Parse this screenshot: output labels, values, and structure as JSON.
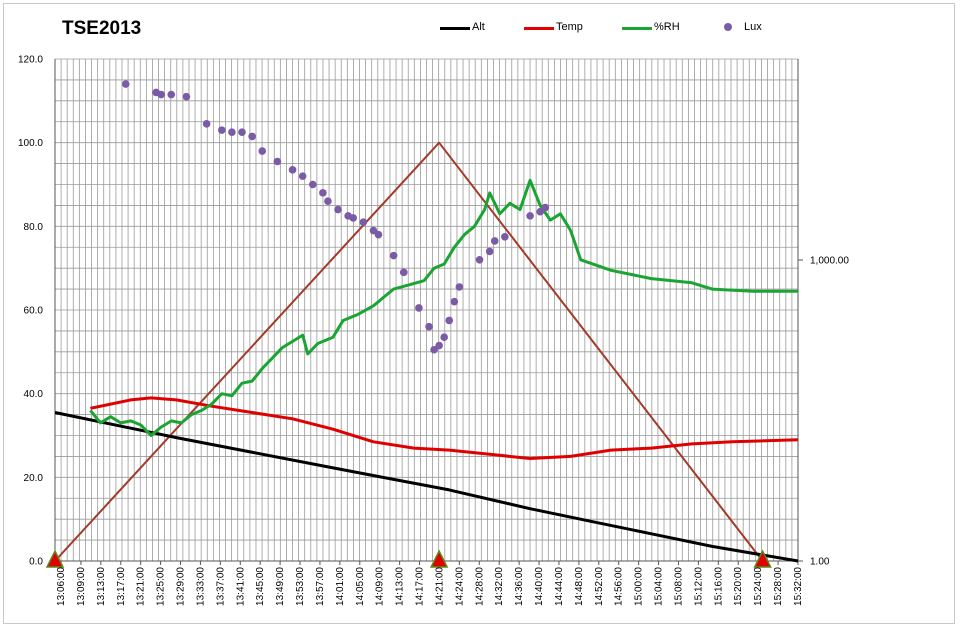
{
  "chart_data": {
    "type": "line",
    "title": "TSE2013",
    "legend_placement": "top",
    "grid": true,
    "x_tick_labels": [
      "13:06:00",
      "13:09:00",
      "13:13:00",
      "13:17:00",
      "13:21:00",
      "13:25:00",
      "13:29:00",
      "13:33:00",
      "13:37:00",
      "13:41:00",
      "13:45:00",
      "13:49:00",
      "13:53:00",
      "13:57:00",
      "14:01:00",
      "14:05:00",
      "14:09:00",
      "14:13:00",
      "14:17:00",
      "14:21:00",
      "14:24:00",
      "14:28:00",
      "14:32:00",
      "14:36:00",
      "14:40:00",
      "14:44:00",
      "14:48:00",
      "14:52:00",
      "14:56:00",
      "15:00:00",
      "15:04:00",
      "15:08:00",
      "15:12:00",
      "15:16:00",
      "15:20:00",
      "15:24:00",
      "15:28:00",
      "15:32:00"
    ],
    "y_left": {
      "ticks": [
        "0.0",
        "20.0",
        "40.0",
        "60.0",
        "80.0",
        "100.0",
        "120.0"
      ],
      "range": [
        0,
        120
      ]
    },
    "y_right": {
      "ticks": [
        "1.00",
        "1,000.00"
      ],
      "scale": "log"
    },
    "series": [
      {
        "name": "Alt",
        "color": "#000000",
        "style": "line",
        "points": [
          [
            "13:06",
            35.5
          ],
          [
            "13:30",
            29.5
          ],
          [
            "14:00",
            22.5
          ],
          [
            "14:13",
            19.5
          ],
          [
            "14:24",
            17.0
          ],
          [
            "14:40",
            12.5
          ],
          [
            "14:52",
            9.5
          ],
          [
            "15:04",
            6.5
          ],
          [
            "15:16",
            3.5
          ],
          [
            "15:33",
            0.0
          ]
        ]
      },
      {
        "name": "Temp",
        "color": "#e00000",
        "style": "line",
        "points": [
          [
            "13:13",
            36.5
          ],
          [
            "13:17",
            37.5
          ],
          [
            "13:21",
            38.5
          ],
          [
            "13:25",
            39.0
          ],
          [
            "13:30",
            38.5
          ],
          [
            "13:37",
            37.0
          ],
          [
            "13:45",
            35.5
          ],
          [
            "13:53",
            34.0
          ],
          [
            "14:01",
            31.5
          ],
          [
            "14:09",
            28.5
          ],
          [
            "14:17",
            27.0
          ],
          [
            "14:24",
            26.5
          ],
          [
            "14:32",
            25.5
          ],
          [
            "14:40",
            24.5
          ],
          [
            "14:48",
            25.0
          ],
          [
            "14:56",
            26.5
          ],
          [
            "15:04",
            27.0
          ],
          [
            "15:12",
            28.0
          ],
          [
            "15:20",
            28.5
          ],
          [
            "15:33",
            29.0
          ]
        ]
      },
      {
        "name": "%RH",
        "color": "#1aa532",
        "style": "line",
        "points": [
          [
            "13:13",
            36.0
          ],
          [
            "13:15",
            33.0
          ],
          [
            "13:17",
            34.5
          ],
          [
            "13:19",
            33.0
          ],
          [
            "13:21",
            33.5
          ],
          [
            "13:23",
            32.5
          ],
          [
            "13:25",
            30.0
          ],
          [
            "13:27",
            32.0
          ],
          [
            "13:29",
            33.5
          ],
          [
            "13:31",
            33.0
          ],
          [
            "13:33",
            35.0
          ],
          [
            "13:35",
            36.0
          ],
          [
            "13:37",
            37.5
          ],
          [
            "13:39",
            40.0
          ],
          [
            "13:41",
            39.5
          ],
          [
            "13:43",
            42.5
          ],
          [
            "13:45",
            43.0
          ],
          [
            "13:47",
            46.0
          ],
          [
            "13:49",
            48.5
          ],
          [
            "13:51",
            51.0
          ],
          [
            "13:53",
            52.5
          ],
          [
            "13:55",
            54.0
          ],
          [
            "13:56",
            49.5
          ],
          [
            "13:58",
            52.0
          ],
          [
            "14:01",
            53.5
          ],
          [
            "14:03",
            57.5
          ],
          [
            "14:06",
            59.0
          ],
          [
            "14:09",
            61.0
          ],
          [
            "14:11",
            63.0
          ],
          [
            "14:13",
            65.0
          ],
          [
            "14:16",
            66.0
          ],
          [
            "14:19",
            67.0
          ],
          [
            "14:21",
            70.0
          ],
          [
            "14:23",
            71.0
          ],
          [
            "14:25",
            75.0
          ],
          [
            "14:27",
            78.0
          ],
          [
            "14:29",
            80.0
          ],
          [
            "14:31",
            84.0
          ],
          [
            "14:32",
            88.0
          ],
          [
            "14:34",
            83.0
          ],
          [
            "14:36",
            85.5
          ],
          [
            "14:38",
            84.0
          ],
          [
            "14:40",
            91.0
          ],
          [
            "14:42",
            85.0
          ],
          [
            "14:44",
            81.5
          ],
          [
            "14:46",
            83.0
          ],
          [
            "14:48",
            79.0
          ],
          [
            "14:50",
            72.0
          ],
          [
            "14:56",
            69.5
          ],
          [
            "15:04",
            67.5
          ],
          [
            "15:12",
            66.5
          ],
          [
            "15:16",
            65.0
          ],
          [
            "15:24",
            64.5
          ],
          [
            "15:33",
            64.5
          ]
        ]
      },
      {
        "name": "Lux",
        "color": "#7b5aa6",
        "style": "scatter",
        "points": [
          [
            "13:20",
            114.0
          ],
          [
            "13:26",
            112.0
          ],
          [
            "13:27",
            111.5
          ],
          [
            "13:29",
            111.5
          ],
          [
            "13:32",
            111.0
          ],
          [
            "13:36",
            104.5
          ],
          [
            "13:39",
            103.0
          ],
          [
            "13:41",
            102.5
          ],
          [
            "13:43",
            102.5
          ],
          [
            "13:45",
            101.5
          ],
          [
            "13:47",
            98.0
          ],
          [
            "13:50",
            95.5
          ],
          [
            "13:53",
            93.5
          ],
          [
            "13:55",
            92.0
          ],
          [
            "13:57",
            90.0
          ],
          [
            "13:59",
            88.0
          ],
          [
            "14:00",
            86.0
          ],
          [
            "14:02",
            84.0
          ],
          [
            "14:04",
            82.5
          ],
          [
            "14:05",
            82.0
          ],
          [
            "14:07",
            81.0
          ],
          [
            "14:09",
            79.0
          ],
          [
            "14:10",
            78.0
          ],
          [
            "14:13",
            73.0
          ],
          [
            "14:15",
            69.0
          ],
          [
            "14:18",
            60.5
          ],
          [
            "14:20",
            56.0
          ],
          [
            "14:21",
            50.5
          ],
          [
            "14:22",
            51.5
          ],
          [
            "14:23",
            53.5
          ],
          [
            "14:24",
            57.5
          ],
          [
            "14:25",
            62.0
          ],
          [
            "14:26",
            65.5
          ],
          [
            "14:30",
            72.0
          ],
          [
            "14:32",
            74.0
          ],
          [
            "14:33",
            76.5
          ],
          [
            "14:35",
            77.5
          ],
          [
            "14:40",
            82.5
          ],
          [
            "14:42",
            83.5
          ],
          [
            "14:43",
            84.5
          ]
        ]
      },
      {
        "name": "",
        "color": "#a33a2a",
        "style": "line",
        "points": [
          [
            "13:06",
            0.0
          ],
          [
            "14:22",
            100.0
          ],
          [
            "15:26",
            0.0
          ]
        ]
      },
      {
        "name": "",
        "color": "#e00000",
        "style": "markers",
        "points": [
          [
            "13:06",
            0.0
          ],
          [
            "14:22",
            0.0
          ],
          [
            "15:26",
            0.0
          ]
        ]
      }
    ]
  }
}
